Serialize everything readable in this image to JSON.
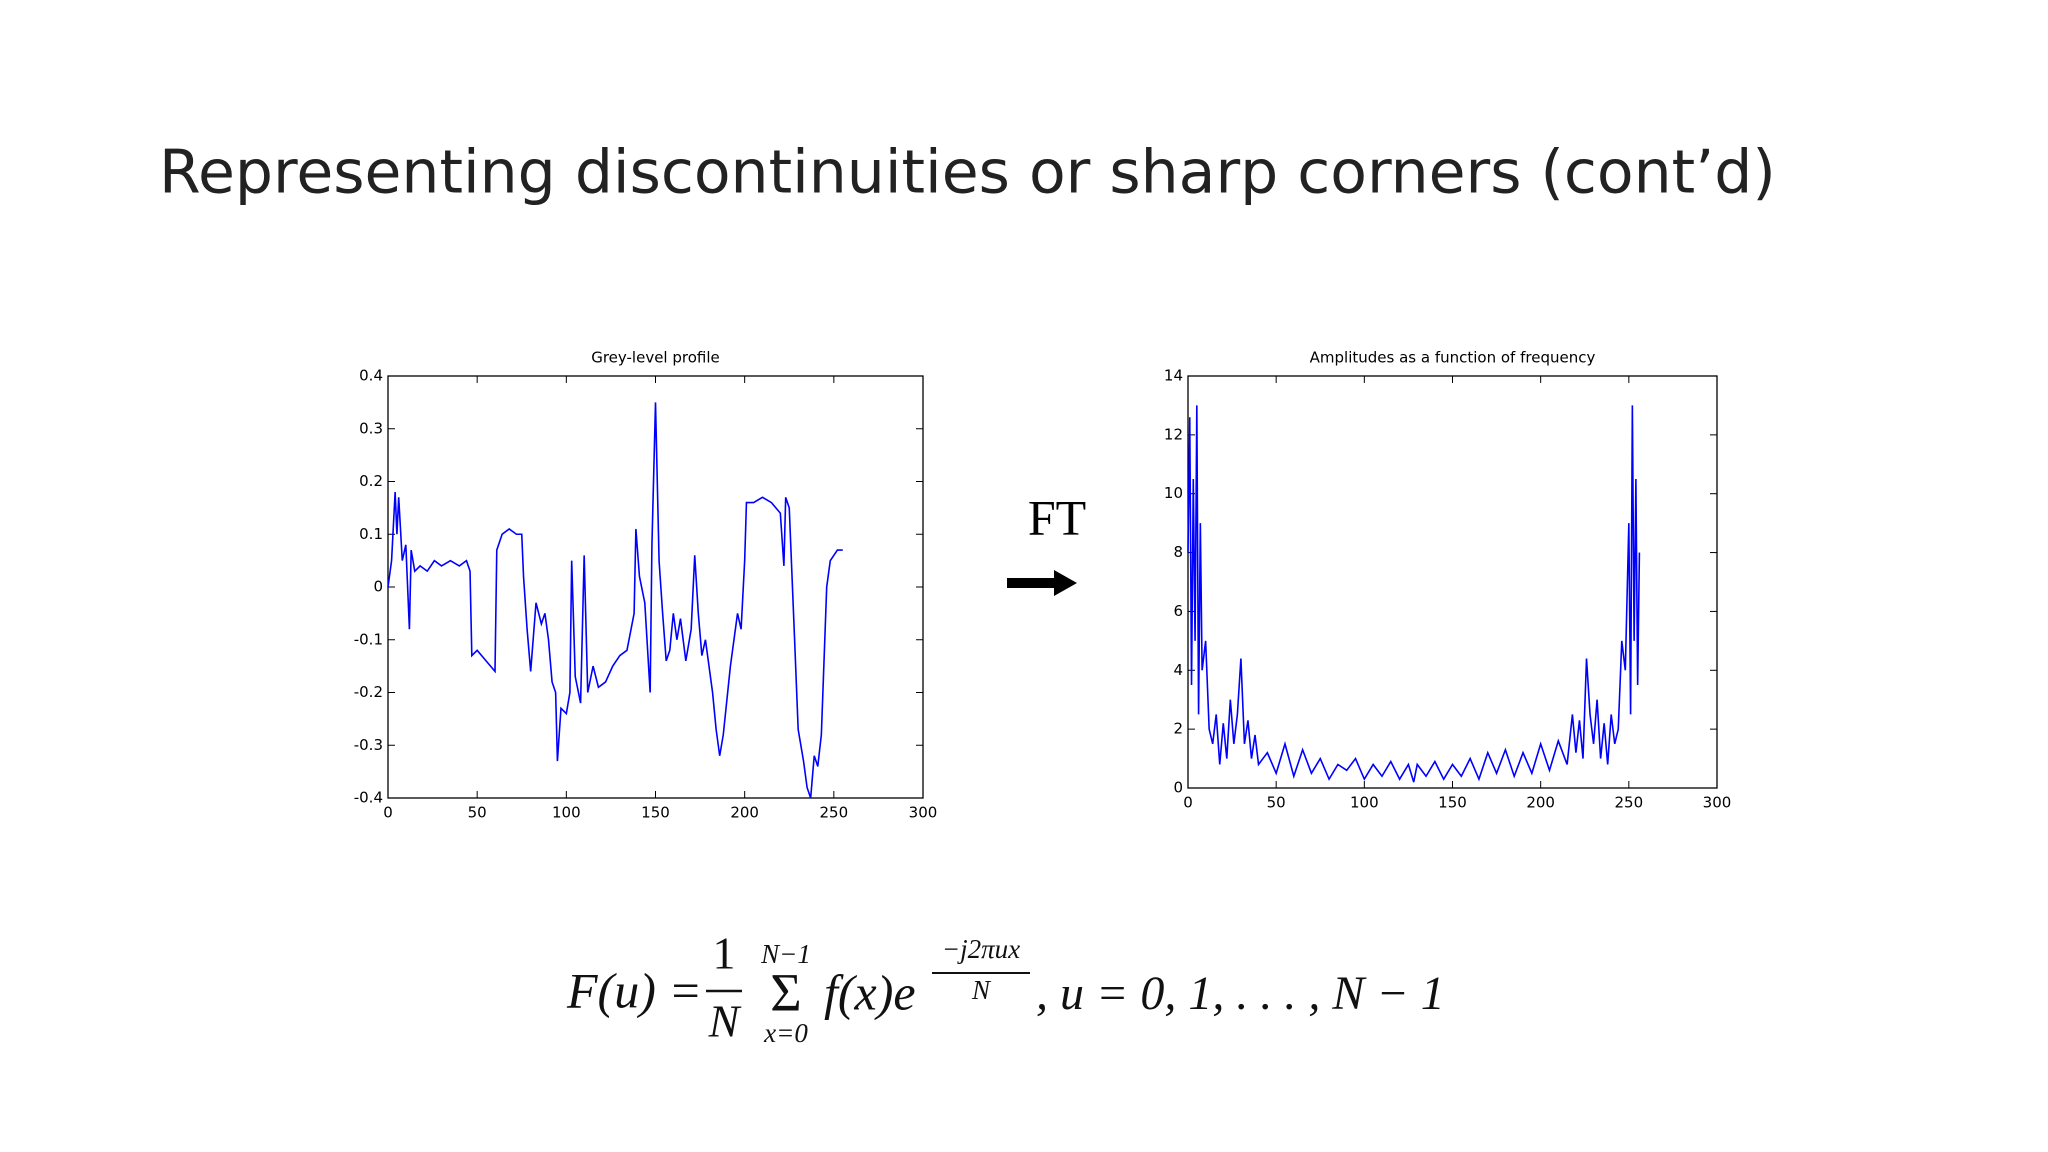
{
  "title": "Representing discontinuities or sharp corners (cont’d)",
  "arrow_label": "FT",
  "formula": {
    "lhs": "F(u) =",
    "frac_num": "1",
    "frac_den": "N",
    "sum_top": "N−1",
    "sum_sign": "Σ",
    "sum_bottom": "x=0",
    "body": "f(x)e",
    "exp_num": "−j2πux",
    "exp_den": "N",
    "tail": ", u = 0, 1, . . . , N − 1"
  },
  "chart_data": [
    {
      "type": "line",
      "title": "Grey-level profile",
      "xlim": [
        0,
        300
      ],
      "xticks": [
        0,
        50,
        100,
        150,
        200,
        250,
        300
      ],
      "ylim": [
        -0.4,
        0.4
      ],
      "yticks": [
        -0.4,
        -0.3,
        -0.2,
        -0.1,
        0,
        0.1,
        0.2,
        0.3,
        0.4
      ],
      "series": [
        {
          "color": "#0000ff",
          "x": [
            0,
            2,
            4,
            5,
            6,
            8,
            10,
            12,
            13,
            15,
            18,
            22,
            26,
            30,
            35,
            40,
            44,
            46,
            47,
            50,
            55,
            60,
            61,
            64,
            68,
            72,
            75,
            76,
            78,
            80,
            83,
            86,
            88,
            90,
            92,
            94,
            95,
            97,
            100,
            102,
            103,
            105,
            108,
            110,
            112,
            115,
            118,
            122,
            126,
            130,
            134,
            138,
            139,
            141,
            144,
            147,
            148,
            150,
            152,
            154,
            156,
            158,
            160,
            162,
            164,
            167,
            170,
            172,
            174,
            176,
            178,
            180,
            182,
            184,
            186,
            188,
            192,
            196,
            198,
            200,
            201,
            205,
            210,
            215,
            220,
            222,
            223,
            225,
            228,
            230,
            233,
            235,
            237,
            239,
            241,
            243,
            246,
            248,
            252,
            255
          ],
          "values": [
            0,
            0.05,
            0.18,
            0.1,
            0.17,
            0.05,
            0.08,
            -0.08,
            0.07,
            0.03,
            0.04,
            0.03,
            0.05,
            0.04,
            0.05,
            0.04,
            0.05,
            0.03,
            -0.13,
            -0.12,
            -0.14,
            -0.16,
            0.07,
            0.1,
            0.11,
            0.1,
            0.1,
            0.02,
            -0.08,
            -0.16,
            -0.03,
            -0.07,
            -0.05,
            -0.1,
            -0.18,
            -0.2,
            -0.33,
            -0.23,
            -0.24,
            -0.2,
            0.05,
            -0.17,
            -0.22,
            0.06,
            -0.2,
            -0.15,
            -0.19,
            -0.18,
            -0.15,
            -0.13,
            -0.12,
            -0.05,
            0.11,
            0.02,
            -0.03,
            -0.2,
            0.08,
            0.35,
            0.05,
            -0.05,
            -0.14,
            -0.12,
            -0.05,
            -0.1,
            -0.06,
            -0.14,
            -0.08,
            0.06,
            -0.05,
            -0.13,
            -0.1,
            -0.15,
            -0.2,
            -0.27,
            -0.32,
            -0.28,
            -0.15,
            -0.05,
            -0.08,
            0.05,
            0.16,
            0.16,
            0.17,
            0.16,
            0.14,
            0.04,
            0.17,
            0.15,
            -0.1,
            -0.27,
            -0.33,
            -0.38,
            -0.4,
            -0.32,
            -0.34,
            -0.28,
            0,
            0.05,
            0.07,
            0.07
          ]
        }
      ]
    },
    {
      "type": "line",
      "title": "Amplitudes as a function of frequency",
      "xlim": [
        0,
        300
      ],
      "xticks": [
        0,
        50,
        100,
        150,
        200,
        250,
        300
      ],
      "ylim": [
        0,
        14
      ],
      "yticks": [
        0,
        2,
        4,
        6,
        8,
        10,
        12,
        14
      ],
      "series": [
        {
          "color": "#0000ff",
          "x": [
            0,
            1,
            2,
            3,
            4,
            5,
            6,
            7,
            8,
            10,
            12,
            14,
            16,
            18,
            20,
            22,
            24,
            26,
            28,
            30,
            32,
            34,
            36,
            38,
            40,
            45,
            50,
            55,
            60,
            65,
            70,
            75,
            80,
            85,
            90,
            95,
            100,
            105,
            110,
            115,
            120,
            125,
            128,
            130,
            135,
            140,
            145,
            150,
            155,
            160,
            165,
            170,
            175,
            180,
            185,
            190,
            195,
            200,
            205,
            210,
            215,
            218,
            220,
            222,
            224,
            226,
            228,
            230,
            232,
            234,
            236,
            238,
            240,
            242,
            244,
            246,
            248,
            250,
            251,
            252,
            253,
            254,
            255,
            256
          ],
          "values": [
            8,
            12.6,
            3.5,
            10.5,
            5,
            13,
            2.5,
            9,
            4,
            5,
            2,
            1.5,
            2.5,
            0.8,
            2.2,
            1,
            3,
            1.5,
            2.5,
            4.4,
            1.5,
            2.3,
            1,
            1.8,
            0.8,
            1.2,
            0.5,
            1.5,
            0.4,
            1.3,
            0.5,
            1,
            0.3,
            0.8,
            0.6,
            1,
            0.3,
            0.8,
            0.4,
            0.9,
            0.3,
            0.8,
            0.2,
            0.8,
            0.4,
            0.9,
            0.3,
            0.8,
            0.4,
            1,
            0.3,
            1.2,
            0.5,
            1.3,
            0.4,
            1.2,
            0.5,
            1.5,
            0.6,
            1.6,
            0.8,
            2.5,
            1.2,
            2.3,
            1,
            4.4,
            2.5,
            1.5,
            3,
            1,
            2.2,
            0.8,
            2.5,
            1.5,
            2,
            5,
            4,
            9,
            2.5,
            13,
            5,
            10.5,
            3.5,
            8
          ]
        }
      ]
    }
  ]
}
